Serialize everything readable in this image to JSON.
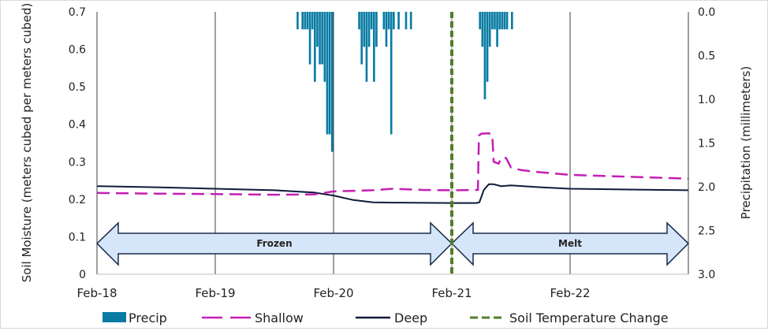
{
  "chart_data": {
    "type": "bar+line",
    "title": "",
    "xlabel": "",
    "ylabel": "Soil Moisture (meters cubed per meters cubed)",
    "y2label": "Precipitation (millimeters)",
    "ylim": [
      0,
      0.7
    ],
    "y2lim": [
      3.0,
      0.0
    ],
    "y2_inverted": true,
    "xlim_hours": [
      0,
      120
    ],
    "x_tick_labels": [
      "Feb-18",
      "Feb-19",
      "Feb-20",
      "Feb-21",
      "Feb-22"
    ],
    "y_tick_labels": [
      "0",
      "0.1",
      "0.2",
      "0.3",
      "0.4",
      "0.5",
      "0.6",
      "0.7"
    ],
    "y2_tick_labels": [
      "0.0",
      "0.5",
      "1.0",
      "1.5",
      "2.0",
      "2.5",
      "3.0"
    ],
    "grid": "vertical",
    "legend_placement": "bottom",
    "colors": {
      "precip": "#0a7ca3",
      "shallow": "#c41fb4",
      "deep": "#0e1c3a",
      "soil_temp": "#4f7f2a",
      "arrow_fill": "#d6e6fa",
      "arrow_stroke": "#1a2a4a"
    },
    "series": [
      {
        "name": "Precip",
        "type": "bar",
        "axis": "right",
        "bar_hours": 0.5,
        "points": [
          [
            40.5,
            0.2
          ],
          [
            41.5,
            0.2
          ],
          [
            42,
            0.2
          ],
          [
            42.5,
            0.2
          ],
          [
            43,
            0.6
          ],
          [
            43.5,
            0.2
          ],
          [
            44,
            0.8
          ],
          [
            44.5,
            0.4
          ],
          [
            45,
            0.6
          ],
          [
            45.5,
            0.6
          ],
          [
            46,
            0.8
          ],
          [
            46.5,
            1.4
          ],
          [
            47,
            1.4
          ],
          [
            47.5,
            1.6
          ],
          [
            53,
            0.2
          ],
          [
            53.5,
            0.6
          ],
          [
            54,
            0.4
          ],
          [
            54.5,
            0.8
          ],
          [
            55,
            0.4
          ],
          [
            55.5,
            0.2
          ],
          [
            56,
            0.8
          ],
          [
            56.5,
            0.4
          ],
          [
            58,
            0.2
          ],
          [
            58.5,
            0.4
          ],
          [
            59,
            0.2
          ],
          [
            59.5,
            1.4
          ],
          [
            60,
            0.2
          ],
          [
            61,
            0.2
          ],
          [
            62.5,
            0.2
          ],
          [
            63.5,
            0.2
          ],
          [
            77.5,
            0.2
          ],
          [
            78,
            0.4
          ],
          [
            78.5,
            1.0
          ],
          [
            79,
            0.8
          ],
          [
            79.5,
            0.4
          ],
          [
            80,
            0.2
          ],
          [
            80.5,
            0.2
          ],
          [
            81,
            0.4
          ],
          [
            81.5,
            0.2
          ],
          [
            82,
            0.2
          ],
          [
            82.5,
            0.2
          ],
          [
            83,
            0.2
          ],
          [
            84,
            0.2
          ]
        ]
      },
      {
        "name": "Shallow",
        "type": "line",
        "style": "dashed",
        "points": [
          [
            0,
            0.217
          ],
          [
            12,
            0.215
          ],
          [
            24,
            0.214
          ],
          [
            36,
            0.212
          ],
          [
            44,
            0.213
          ],
          [
            48,
            0.221
          ],
          [
            56,
            0.224
          ],
          [
            60,
            0.228
          ],
          [
            66,
            0.225
          ],
          [
            72,
            0.224
          ],
          [
            77.3,
            0.225
          ],
          [
            77.5,
            0.37
          ],
          [
            78,
            0.375
          ],
          [
            79.5,
            0.376
          ],
          [
            80.2,
            0.372
          ],
          [
            80.5,
            0.3
          ],
          [
            81.5,
            0.295
          ],
          [
            82,
            0.31
          ],
          [
            83,
            0.31
          ],
          [
            84,
            0.285
          ],
          [
            86,
            0.278
          ],
          [
            90,
            0.272
          ],
          [
            96,
            0.265
          ],
          [
            108,
            0.26
          ],
          [
            120,
            0.255
          ]
        ]
      },
      {
        "name": "Deep",
        "type": "line",
        "style": "solid",
        "points": [
          [
            0,
            0.235
          ],
          [
            12,
            0.232
          ],
          [
            24,
            0.228
          ],
          [
            36,
            0.224
          ],
          [
            44,
            0.218
          ],
          [
            48,
            0.21
          ],
          [
            52,
            0.198
          ],
          [
            56,
            0.192
          ],
          [
            60,
            0.191
          ],
          [
            72,
            0.19
          ],
          [
            77,
            0.19
          ],
          [
            77.6,
            0.192
          ],
          [
            78.5,
            0.225
          ],
          [
            79.5,
            0.24
          ],
          [
            80.5,
            0.24
          ],
          [
            82,
            0.235
          ],
          [
            84,
            0.237
          ],
          [
            90,
            0.232
          ],
          [
            96,
            0.228
          ],
          [
            108,
            0.226
          ],
          [
            120,
            0.224
          ]
        ]
      },
      {
        "name": "Soil Temperature Change",
        "type": "vline",
        "style": "dashed",
        "x_hours": 72
      }
    ],
    "annotations": [
      {
        "text": "Frozen",
        "type": "double-arrow",
        "from_hours": 0,
        "to_hours": 72,
        "y": 0.08
      },
      {
        "text": "Melt",
        "type": "double-arrow",
        "from_hours": 72,
        "to_hours": 120,
        "y": 0.08
      }
    ]
  }
}
